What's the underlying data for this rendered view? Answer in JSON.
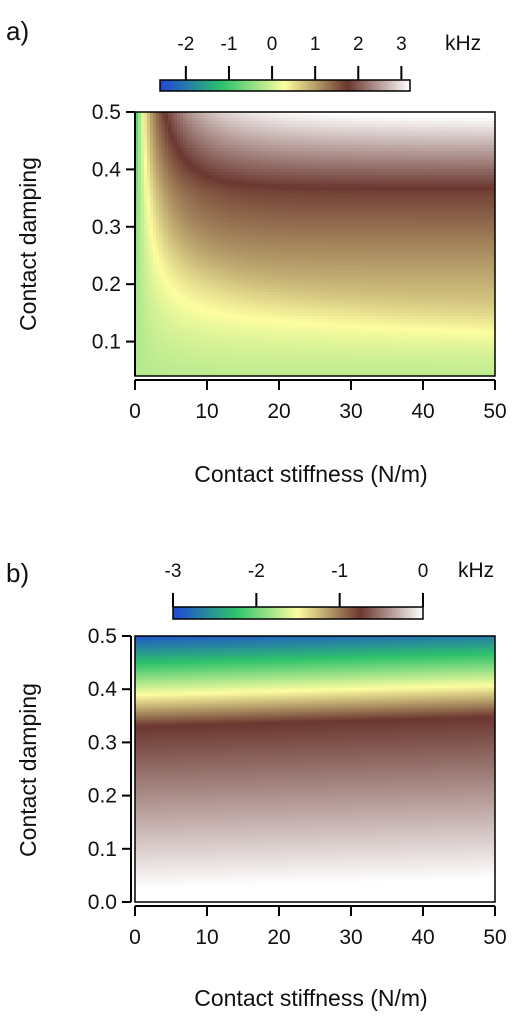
{
  "chart_data": [
    {
      "type": "heatmap",
      "panel_label": "a)",
      "xlabel": "Contact stiffness (N/m)",
      "ylabel": "Contact damping",
      "x_ticks": [
        "0",
        "10",
        "20",
        "30",
        "40",
        "50"
      ],
      "y_ticks": [
        "0.1",
        "0.2",
        "0.3",
        "0.4",
        "0.5"
      ],
      "xlim": [
        0,
        50
      ],
      "ylim": [
        0.04,
        0.5
      ],
      "colorbar": {
        "unit": "kHz",
        "ticks": [
          "-2",
          "-1",
          "0",
          "1",
          "2",
          "3"
        ],
        "range": [
          -2.6,
          3.2
        ],
        "colors": [
          "#1f47d6",
          "#2ec36a",
          "#fdfda0",
          "#6b3730",
          "#ffffff"
        ],
        "placement": "top"
      },
      "z_description": "frequency shift in kHz as a function of contact stiffness (x) and contact damping (y)"
    },
    {
      "type": "heatmap",
      "panel_label": "b)",
      "xlabel": "Contact stiffness (N/m)",
      "ylabel": "Contact damping",
      "x_ticks": [
        "0",
        "10",
        "20",
        "30",
        "40",
        "50"
      ],
      "y_ticks": [
        "0.0",
        "0.1",
        "0.2",
        "0.3",
        "0.4",
        "0.5"
      ],
      "xlim": [
        0,
        50
      ],
      "ylim": [
        0,
        0.5
      ],
      "colorbar": {
        "unit": "kHz",
        "ticks": [
          "-3",
          "-2",
          "-1",
          "0"
        ],
        "range": [
          -3.0,
          0
        ],
        "colors": [
          "#1f47d6",
          "#2ec36a",
          "#fdfda0",
          "#6b3730",
          "#ffffff"
        ],
        "placement": "top"
      },
      "z_description": "dissipation-related shift in kHz as a function of contact stiffness (x) and contact damping (y)"
    }
  ]
}
